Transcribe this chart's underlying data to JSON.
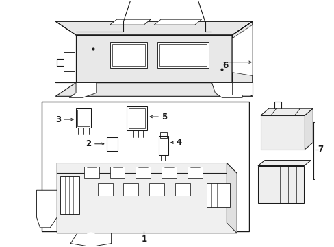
{
  "bg_color": "#ffffff",
  "lc": "#1a1a1a",
  "fig_width": 4.89,
  "fig_height": 3.6,
  "dpi": 100,
  "cover_color": "#e8e8e8",
  "part_color": "#d8d8d8"
}
